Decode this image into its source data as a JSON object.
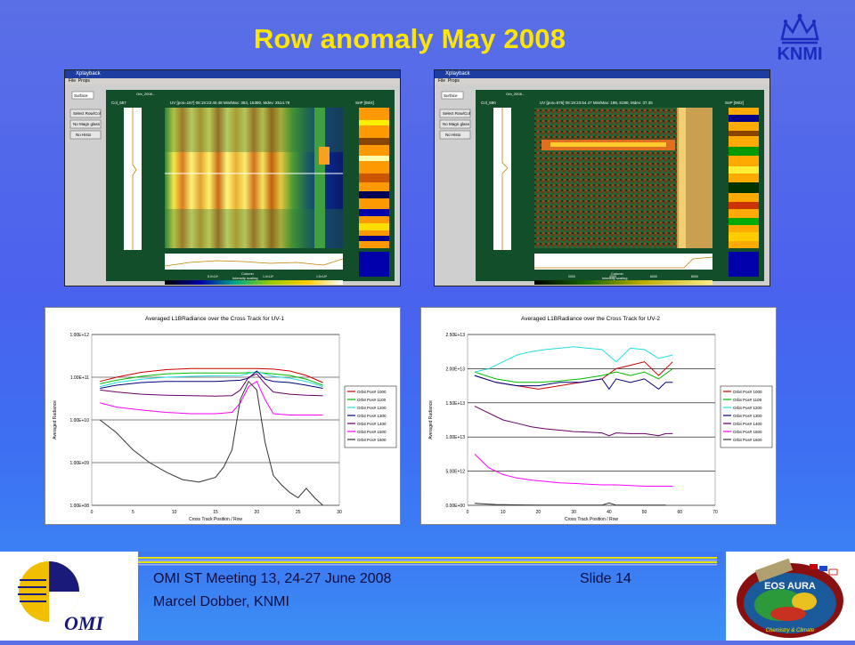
{
  "slide": {
    "title": "Row anomaly May 2008",
    "logo_text": "KNMI",
    "footer_meeting": "OMI ST Meeting 13, 24-27 June 2008",
    "footer_slide": "Slide 14",
    "footer_author": "Marcel Dobber, KNMI",
    "omi_logo_text": "OMI",
    "aura_badge_text": "EOS AURA",
    "aura_badge_sub": "Chemistry & Climate"
  },
  "screenshots": [
    {
      "window_title": "Xplayback",
      "menu": [
        "File",
        "Props"
      ],
      "surface_select": "Surface",
      "buttons": [
        "Select Row/Col",
        "No Magn glass",
        "No Histo"
      ],
      "col_label": "Col_687",
      "header_line": "Orb_2008...",
      "uv_line": "UV [pos=157] 08:19:23:40.48  Min/Max: 363, 16380, Mdev: 2514.79",
      "snp_label": "SnP [08/4]",
      "bottom_axis_label": "Column",
      "scale_label": "Intensity scaling",
      "intensity_labels": [
        "5.0×10⁴",
        "1.0×10⁵",
        "1.5×10⁵"
      ]
    },
    {
      "window_title": "Xplayback",
      "menu": [
        "File",
        "Props"
      ],
      "surface_select": "Surface",
      "buttons": [
        "Select Row/Col",
        "No Magn glass",
        "No Histo"
      ],
      "col_label": "Col_690",
      "header_line": "Orb_2008...",
      "uv_line": "UV [pos=576] 08:19:23:54.47  Min/Max: 198, 8190, Mdev: 37.35",
      "snp_label": "SnP [08/2]",
      "bottom_axis_label": "Column",
      "scale_label": "Intensity scaling",
      "intensity_labels": [
        "2000",
        "4000",
        "6000",
        "8000"
      ]
    }
  ],
  "chart_data": [
    {
      "type": "line",
      "title": "Averaged L1BRadiance over the Cross Track for UV-1",
      "xlabel": "Cross Track Position / Row",
      "ylabel": "Averaged Radiance",
      "xlim": [
        0,
        30
      ],
      "xticks": [
        "0",
        "5",
        "10",
        "15",
        "20",
        "25",
        "30"
      ],
      "yscale": "log",
      "yticks": [
        "1.00E+08",
        "1.00E+09",
        "1.00E+10",
        "1.00E+11",
        "1.00E+12"
      ],
      "ylim": [
        100000000,
        1000000000000
      ],
      "legend_position": "right",
      "series": [
        {
          "name": "Orbit Pos# 1000",
          "color": "#cc0000",
          "x": [
            1,
            3,
            6,
            9,
            12,
            15,
            18,
            20,
            22,
            24,
            26,
            28
          ],
          "y": [
            80000000000.0,
            100000000000.0,
            130000000000.0,
            150000000000.0,
            160000000000.0,
            160000000000.0,
            160000000000.0,
            160000000000.0,
            155000000000.0,
            140000000000.0,
            110000000000.0,
            75000000000.0
          ]
        },
        {
          "name": "Orbit Pos# 1100",
          "color": "#00bb00",
          "x": [
            1,
            3,
            6,
            9,
            12,
            15,
            18,
            20,
            22,
            24,
            26,
            28
          ],
          "y": [
            70000000000.0,
            85000000000.0,
            105000000000.0,
            120000000000.0,
            125000000000.0,
            125000000000.0,
            125000000000.0,
            130000000000.0,
            120000000000.0,
            110000000000.0,
            90000000000.0,
            65000000000.0
          ]
        },
        {
          "name": "Orbit Pos# 1200",
          "color": "#22dddd",
          "x": [
            1,
            3,
            6,
            9,
            12,
            15,
            18,
            20,
            22,
            24,
            26,
            28
          ],
          "y": [
            60000000000.0,
            75000000000.0,
            90000000000.0,
            100000000000.0,
            105000000000.0,
            108000000000.0,
            110000000000.0,
            135000000000.0,
            105000000000.0,
            95000000000.0,
            80000000000.0,
            60000000000.0
          ]
        },
        {
          "name": "Orbit Pos# 1300",
          "color": "#000080",
          "x": [
            1,
            3,
            6,
            9,
            12,
            15,
            18,
            19,
            20,
            21,
            22,
            24,
            26,
            28
          ],
          "y": [
            55000000000.0,
            65000000000.0,
            75000000000.0,
            80000000000.0,
            80000000000.0,
            80000000000.0,
            85000000000.0,
            95000000000.0,
            140000000000.0,
            90000000000.0,
            80000000000.0,
            75000000000.0,
            65000000000.0,
            55000000000.0
          ]
        },
        {
          "name": "Orbit Pos# 1400",
          "color": "#660066",
          "x": [
            1,
            3,
            6,
            9,
            12,
            15,
            17,
            18,
            19,
            20,
            21,
            22,
            24,
            26,
            28
          ],
          "y": [
            50000000000.0,
            45000000000.0,
            40000000000.0,
            38000000000.0,
            37000000000.0,
            36000000000.0,
            37000000000.0,
            50000000000.0,
            100000000000.0,
            120000000000.0,
            70000000000.0,
            45000000000.0,
            40000000000.0,
            38000000000.0,
            37000000000.0
          ]
        },
        {
          "name": "Orbit Pos# 1500",
          "color": "#ff00ff",
          "x": [
            1,
            3,
            6,
            9,
            12,
            15,
            17,
            18,
            19,
            20,
            21,
            22,
            24,
            26,
            28
          ],
          "y": [
            25000000000.0,
            20000000000.0,
            17000000000.0,
            15000000000.0,
            14000000000.0,
            14000000000.0,
            15000000000.0,
            25000000000.0,
            60000000000.0,
            80000000000.0,
            30000000000.0,
            14000000000.0,
            13000000000.0,
            13000000000.0,
            13000000000.0
          ]
        },
        {
          "name": "Orbit Pos# 1600",
          "color": "#333333",
          "x": [
            1,
            3,
            5,
            7,
            9,
            11,
            13,
            15,
            16,
            17,
            18,
            19,
            20,
            21,
            22,
            23,
            24,
            25,
            26,
            27,
            28
          ],
          "y": [
            10000000000.0,
            5000000000.0,
            2000000000.0,
            1000000000.0,
            600000000.0,
            400000000.0,
            350000000.0,
            450000000.0,
            800000000.0,
            2000000000.0,
            30000000000.0,
            80000000000.0,
            50000000000.0,
            3000000000.0,
            500000000.0,
            300000000.0,
            200000000.0,
            150000000.0,
            250000000.0,
            150000000.0,
            100000000.0
          ]
        }
      ]
    },
    {
      "type": "line",
      "title": "Averaged L1BRadiance over the Cross Track for UV-2",
      "xlabel": "Cross Track Position / Row",
      "ylabel": "Averaged Radiance",
      "xlim": [
        0,
        70
      ],
      "xticks": [
        "0",
        "10",
        "20",
        "30",
        "40",
        "50",
        "60",
        "70"
      ],
      "yticks": [
        "0.00E+00",
        "5.00E+12",
        "1.00E+13",
        "1.50E+13",
        "2.00E+13",
        "2.50E+13"
      ],
      "ylim": [
        0,
        25000000000000
      ],
      "legend_position": "right",
      "series": [
        {
          "name": "Orbit Pos# 1000",
          "color": "#cc0000",
          "x": [
            2,
            8,
            14,
            20,
            26,
            32,
            38,
            42,
            46,
            50,
            54,
            58
          ],
          "y": [
            19000000000000.0,
            18000000000000.0,
            17500000000000.0,
            17000000000000.0,
            17500000000000.0,
            18000000000000.0,
            18500000000000.0,
            20000000000000.0,
            20500000000000.0,
            21000000000000.0,
            19000000000000.0,
            21000000000000.0
          ]
        },
        {
          "name": "Orbit Pos# 1100",
          "color": "#00bb00",
          "x": [
            2,
            8,
            14,
            20,
            26,
            32,
            38,
            42,
            46,
            50,
            54,
            58
          ],
          "y": [
            19500000000000.0,
            18500000000000.0,
            18000000000000.0,
            18000000000000.0,
            18200000000000.0,
            18500000000000.0,
            19000000000000.0,
            19500000000000.0,
            19000000000000.0,
            19500000000000.0,
            18500000000000.0,
            20000000000000.0
          ]
        },
        {
          "name": "Orbit Pos# 1200",
          "color": "#22dddd",
          "x": [
            2,
            6,
            10,
            14,
            18,
            22,
            26,
            30,
            34,
            38,
            42,
            46,
            50,
            54,
            58
          ],
          "y": [
            19500000000000.0,
            20000000000000.0,
            21000000000000.0,
            22000000000000.0,
            22500000000000.0,
            22800000000000.0,
            23000000000000.0,
            23200000000000.0,
            23000000000000.0,
            22800000000000.0,
            21000000000000.0,
            23000000000000.0,
            22800000000000.0,
            21500000000000.0,
            22000000000000.0
          ]
        },
        {
          "name": "Orbit Pos# 1300",
          "color": "#000080",
          "x": [
            2,
            8,
            14,
            20,
            26,
            32,
            38,
            40,
            42,
            46,
            50,
            54,
            56,
            58
          ],
          "y": [
            19000000000000.0,
            18000000000000.0,
            17500000000000.0,
            17500000000000.0,
            18000000000000.0,
            18000000000000.0,
            18500000000000.0,
            17000000000000.0,
            18500000000000.0,
            18000000000000.0,
            18500000000000.0,
            17000000000000.0,
            18000000000000.0,
            18000000000000.0
          ]
        },
        {
          "name": "Orbit Pos# 1400",
          "color": "#660066",
          "x": [
            2,
            6,
            10,
            14,
            18,
            22,
            26,
            30,
            34,
            38,
            40,
            42,
            46,
            50,
            54,
            56,
            58
          ],
          "y": [
            14500000000000.0,
            13500000000000.0,
            12500000000000.0,
            12000000000000.0,
            11500000000000.0,
            11200000000000.0,
            11000000000000.0,
            10800000000000.0,
            10700000000000.0,
            10600000000000.0,
            10200000000000.0,
            10600000000000.0,
            10500000000000.0,
            10500000000000.0,
            10200000000000.0,
            10500000000000.0,
            10500000000000.0
          ]
        },
        {
          "name": "Orbit Pos# 1500",
          "color": "#ff00ff",
          "x": [
            2,
            6,
            10,
            14,
            18,
            22,
            26,
            30,
            34,
            38,
            42,
            46,
            50,
            54,
            58
          ],
          "y": [
            7500000000000.0,
            5500000000000.0,
            4500000000000.0,
            4000000000000.0,
            3700000000000.0,
            3500000000000.0,
            3300000000000.0,
            3200000000000.0,
            3100000000000.0,
            3000000000000.0,
            3000000000000.0,
            2900000000000.0,
            2800000000000.0,
            2800000000000.0,
            2800000000000.0
          ]
        },
        {
          "name": "Orbit Pos# 1600",
          "color": "#333333",
          "x": [
            2,
            5,
            8,
            12,
            16,
            20,
            30,
            38,
            40,
            42,
            46,
            50,
            56
          ],
          "y": [
            300000000000.0,
            200000000000.0,
            120000000000.0,
            80000000000.0,
            50000000000.0,
            30000000000.0,
            20000000000.0,
            30000000000.0,
            350000000000.0,
            30000000000.0,
            20000000000.0,
            20000000000.0,
            20000000000.0
          ]
        }
      ]
    }
  ]
}
